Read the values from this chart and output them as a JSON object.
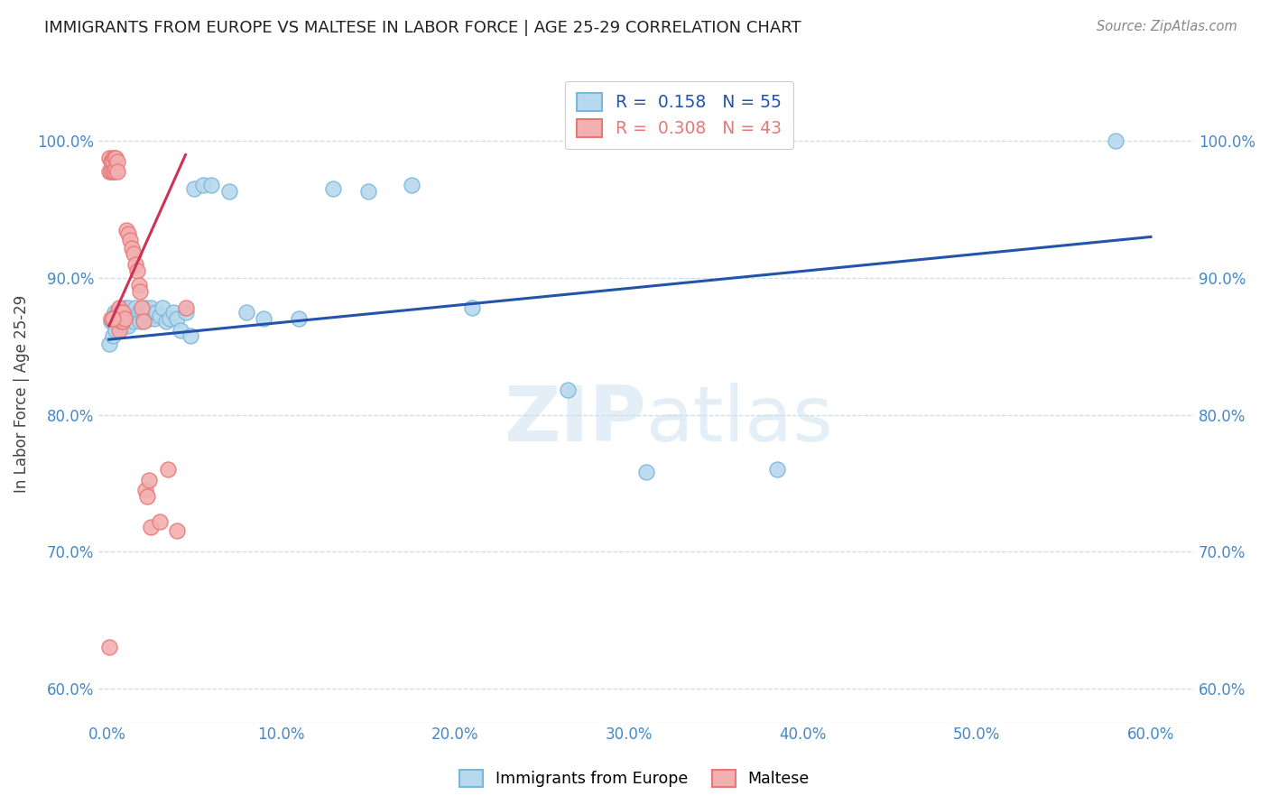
{
  "title": "IMMIGRANTS FROM EUROPE VS MALTESE IN LABOR FORCE | AGE 25-29 CORRELATION CHART",
  "source": "Source: ZipAtlas.com",
  "ylabel": "In Labor Force | Age 25-29",
  "x_ticks": [
    0.0,
    0.1,
    0.2,
    0.3,
    0.4,
    0.5,
    0.6
  ],
  "x_tick_labels": [
    "0.0%",
    "10.0%",
    "20.0%",
    "30.0%",
    "40.0%",
    "50.0%",
    "60.0%"
  ],
  "y_ticks": [
    0.6,
    0.7,
    0.8,
    0.9,
    1.0
  ],
  "y_tick_labels": [
    "60.0%",
    "70.0%",
    "80.0%",
    "90.0%",
    "100.0%"
  ],
  "xlim": [
    -0.005,
    0.625
  ],
  "ylim": [
    0.575,
    1.055
  ],
  "blue_R": 0.158,
  "blue_N": 55,
  "pink_R": 0.308,
  "pink_N": 43,
  "blue_color": "#7ab8d9",
  "blue_fill": "#b8d8ee",
  "pink_color": "#e87878",
  "pink_fill": "#f2b0b0",
  "blue_line_color": "#2255aa",
  "pink_line_color": "#cc3355",
  "legend_label_blue": "Immigrants from Europe",
  "legend_label_pink": "Maltese",
  "title_color": "#222222",
  "axis_color": "#4488cc",
  "grid_color": "#c8dded",
  "blue_x": [
    0.001,
    0.002,
    0.003,
    0.004,
    0.005,
    0.005,
    0.006,
    0.007,
    0.008,
    0.008,
    0.009,
    0.01,
    0.01,
    0.011,
    0.012,
    0.012,
    0.013,
    0.014,
    0.015,
    0.016,
    0.017,
    0.018,
    0.019,
    0.02,
    0.021,
    0.022,
    0.023,
    0.024,
    0.025,
    0.027,
    0.028,
    0.03,
    0.032,
    0.034,
    0.036,
    0.038,
    0.04,
    0.042,
    0.045,
    0.048,
    0.05,
    0.055,
    0.06,
    0.07,
    0.08,
    0.09,
    0.11,
    0.13,
    0.15,
    0.175,
    0.21,
    0.265,
    0.31,
    0.385,
    0.58
  ],
  "blue_y": [
    0.852,
    0.868,
    0.858,
    0.875,
    0.87,
    0.862,
    0.875,
    0.868,
    0.875,
    0.865,
    0.87,
    0.878,
    0.865,
    0.872,
    0.878,
    0.865,
    0.87,
    0.875,
    0.868,
    0.878,
    0.872,
    0.875,
    0.868,
    0.875,
    0.87,
    0.878,
    0.875,
    0.87,
    0.878,
    0.87,
    0.875,
    0.872,
    0.878,
    0.868,
    0.87,
    0.875,
    0.87,
    0.862,
    0.875,
    0.858,
    0.965,
    0.968,
    0.968,
    0.963,
    0.875,
    0.87,
    0.87,
    0.965,
    0.963,
    0.968,
    0.878,
    0.818,
    0.758,
    0.76,
    1.0
  ],
  "pink_x": [
    0.001,
    0.001,
    0.002,
    0.002,
    0.003,
    0.003,
    0.003,
    0.004,
    0.004,
    0.005,
    0.005,
    0.006,
    0.006,
    0.007,
    0.007,
    0.007,
    0.008,
    0.008,
    0.009,
    0.009,
    0.01,
    0.011,
    0.012,
    0.013,
    0.014,
    0.015,
    0.016,
    0.017,
    0.018,
    0.019,
    0.02,
    0.021,
    0.022,
    0.023,
    0.024,
    0.025,
    0.03,
    0.035,
    0.04,
    0.045,
    0.002,
    0.003,
    0.001
  ],
  "pink_y": [
    0.988,
    0.978,
    0.985,
    0.978,
    0.988,
    0.985,
    0.978,
    0.988,
    0.978,
    0.988,
    0.98,
    0.985,
    0.978,
    0.878,
    0.87,
    0.862,
    0.875,
    0.868,
    0.875,
    0.868,
    0.87,
    0.935,
    0.932,
    0.928,
    0.922,
    0.918,
    0.91,
    0.905,
    0.895,
    0.89,
    0.878,
    0.868,
    0.745,
    0.74,
    0.752,
    0.718,
    0.722,
    0.76,
    0.715,
    0.878,
    0.87,
    0.87,
    0.63
  ],
  "blue_trend_x0": 0.001,
  "blue_trend_x1": 0.6,
  "blue_trend_y0": 0.855,
  "blue_trend_y1": 0.93,
  "pink_trend_x0": 0.001,
  "pink_trend_x1": 0.045,
  "pink_trend_y0": 0.865,
  "pink_trend_y1": 0.99
}
